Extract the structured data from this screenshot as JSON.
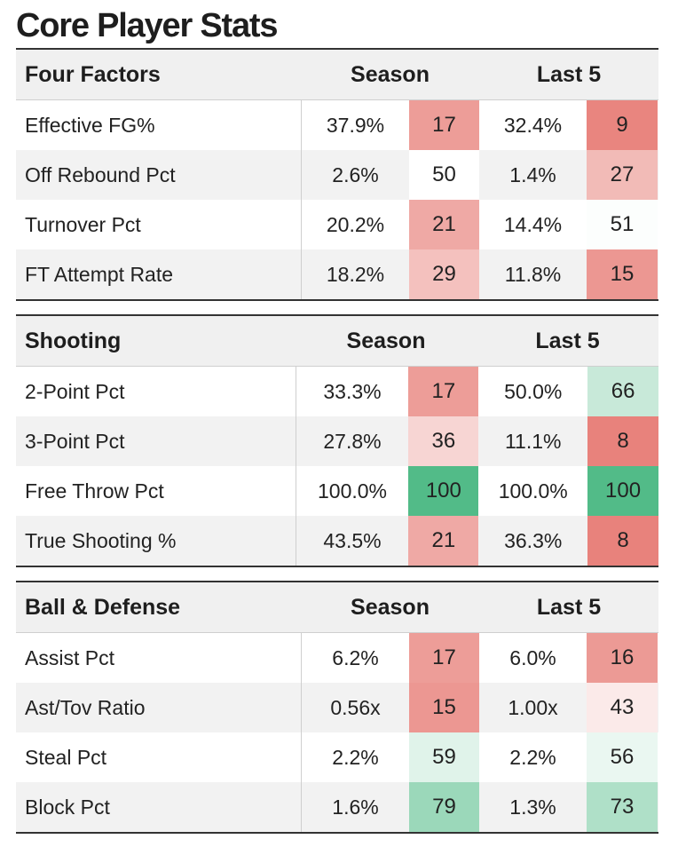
{
  "title": "Core Player Stats",
  "tables": [
    {
      "section": "Four Factors",
      "col_season": "Season",
      "col_last5": "Last 5",
      "rows": [
        {
          "label": "Effective FG%",
          "season_val": "37.9%",
          "season_rank": "17",
          "last5_val": "32.4%",
          "last5_rank": "9"
        },
        {
          "label": "Off Rebound Pct",
          "season_val": "2.6%",
          "season_rank": "50",
          "last5_val": "1.4%",
          "last5_rank": "27"
        },
        {
          "label": "Turnover Pct",
          "season_val": "20.2%",
          "season_rank": "21",
          "last5_val": "14.4%",
          "last5_rank": "51"
        },
        {
          "label": "FT Attempt Rate",
          "season_val": "18.2%",
          "season_rank": "29",
          "last5_val": "11.8%",
          "last5_rank": "15"
        }
      ]
    },
    {
      "section": "Shooting",
      "col_season": "Season",
      "col_last5": "Last 5",
      "rows": [
        {
          "label": "2-Point Pct",
          "season_val": "33.3%",
          "season_rank": "17",
          "last5_val": "50.0%",
          "last5_rank": "66"
        },
        {
          "label": "3-Point Pct",
          "season_val": "27.8%",
          "season_rank": "36",
          "last5_val": "11.1%",
          "last5_rank": "8"
        },
        {
          "label": "Free Throw Pct",
          "season_val": "100.0%",
          "season_rank": "100",
          "last5_val": "100.0%",
          "last5_rank": "100"
        },
        {
          "label": "True Shooting %",
          "season_val": "43.5%",
          "season_rank": "21",
          "last5_val": "36.3%",
          "last5_rank": "8"
        }
      ]
    },
    {
      "section": "Ball & Defense",
      "col_season": "Season",
      "col_last5": "Last 5",
      "rows": [
        {
          "label": "Assist Pct",
          "season_val": "6.2%",
          "season_rank": "17",
          "last5_val": "6.0%",
          "last5_rank": "16"
        },
        {
          "label": "Ast/Tov Ratio",
          "season_val": "0.56x",
          "season_rank": "15",
          "last5_val": "1.00x",
          "last5_rank": "43"
        },
        {
          "label": "Steal Pct",
          "season_val": "2.2%",
          "season_rank": "59",
          "last5_val": "2.2%",
          "last5_rank": "56"
        },
        {
          "label": "Block Pct",
          "season_val": "1.6%",
          "season_rank": "79",
          "last5_val": "1.3%",
          "last5_rank": "73"
        }
      ]
    }
  ],
  "colors": {
    "rank_low": "#e8827c",
    "rank_mid": "#ffffff",
    "rank_high": "#52bb88",
    "header_bg": "#f0f0f0",
    "alt_row_bg": "#f2f2f2"
  }
}
